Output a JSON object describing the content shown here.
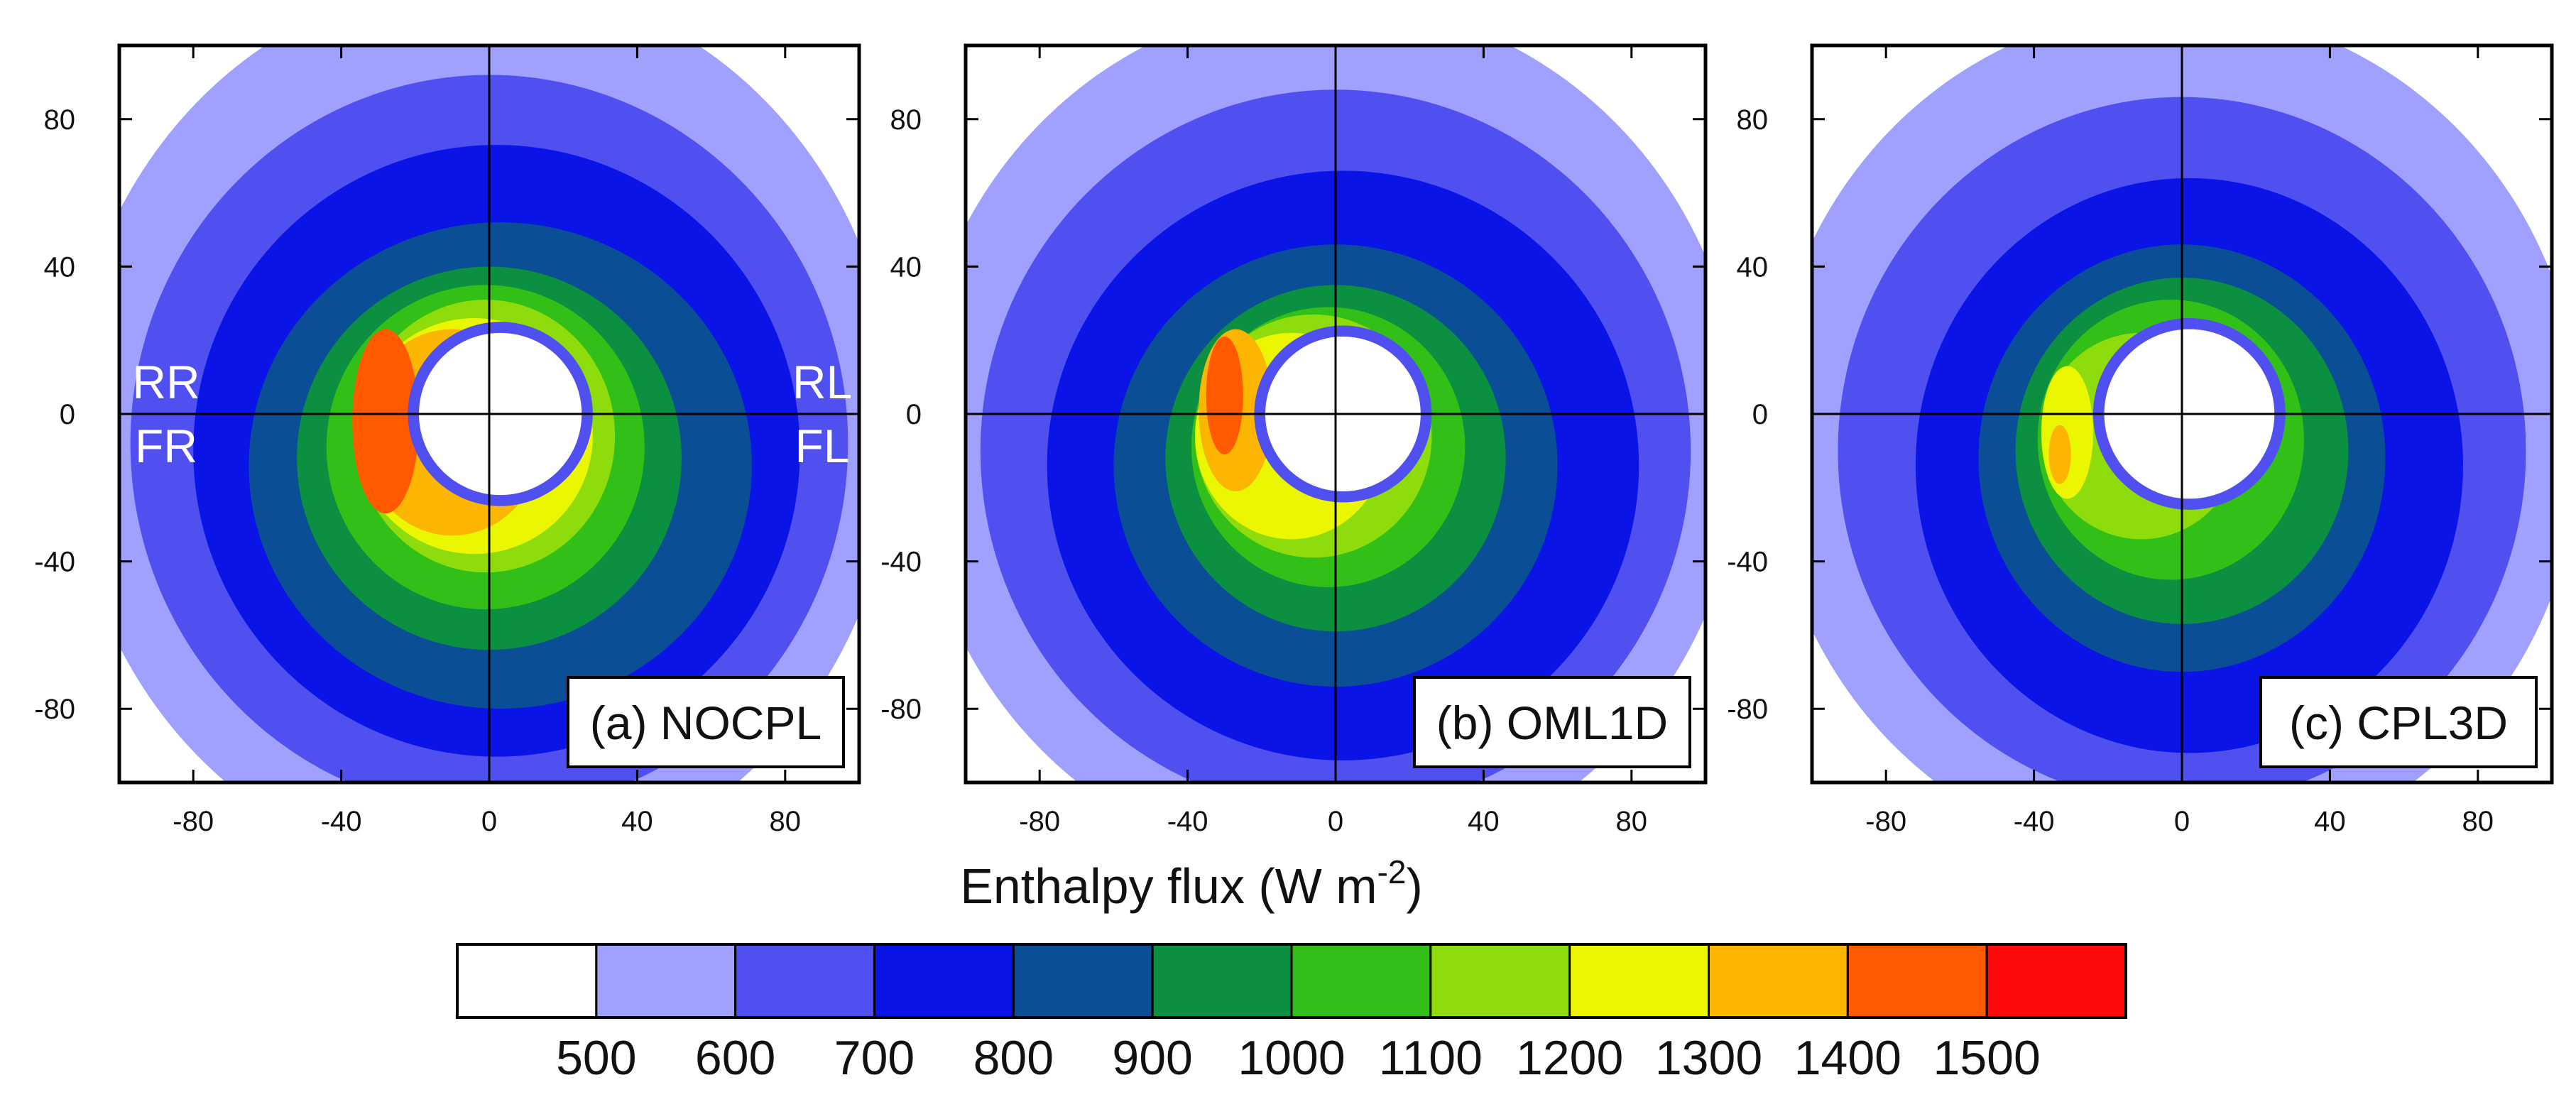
{
  "figure": {
    "xlabel_main": "Enthalpy flux (W m",
    "xlabel_sup": "-2",
    "xlabel_close": ")"
  },
  "chart_data": {
    "type": "heatmap",
    "title": "Enthalpy flux (W m-2)",
    "axes": {
      "xlim": [
        -100,
        100
      ],
      "ylim": [
        -100,
        100
      ],
      "xticks": [
        -80,
        -40,
        0,
        40,
        80
      ],
      "yticks": [
        80,
        40,
        0,
        -40,
        -80
      ],
      "xtick_labels": [
        "-80",
        "-40",
        "0",
        "40",
        "80"
      ],
      "ytick_labels": [
        "80",
        "40",
        "0",
        "-40",
        "-80"
      ]
    },
    "quadrant_labels": {
      "rear_right": "RR",
      "front_right": "FR",
      "rear_left": "RL",
      "front_left": "FL"
    },
    "colorbar": {
      "levels": [
        500,
        600,
        700,
        800,
        900,
        1000,
        1100,
        1200,
        1300,
        1400,
        1500
      ],
      "level_labels": [
        "500",
        "600",
        "700",
        "800",
        "900",
        "1000",
        "1100",
        "1200",
        "1300",
        "1400",
        "1500"
      ],
      "colors": [
        "#ffffff",
        "#a0a0ff",
        "#5050f0",
        "#0a14e6",
        "#0a4e96",
        "#0a9040",
        "#32c018",
        "#8edc0c",
        "#ebf700",
        "#fcb500",
        "#ff5a00",
        "#ff0a0a"
      ]
    },
    "panels": [
      {
        "label": "(a) NOCPL",
        "eye_radius": 22,
        "center_offset_x": 3,
        "max_level": 1400,
        "max_location": "rear-right / front-right, left of center",
        "contours": [
          {
            "level": 500,
            "rx": 112,
            "ry": 122,
            "cx": -2,
            "cy": -4
          },
          {
            "level": 600,
            "rx": 97,
            "ry": 100,
            "cx": 0,
            "cy": -8
          },
          {
            "level": 700,
            "rx": 82,
            "ry": 83,
            "cx": 2,
            "cy": -10
          },
          {
            "level": 800,
            "rx": 68,
            "ry": 66,
            "cx": 3,
            "cy": -14
          },
          {
            "level": 900,
            "rx": 52,
            "ry": 52,
            "cx": 0,
            "cy": -12
          },
          {
            "level": 1000,
            "rx": 43,
            "ry": 44,
            "cx": -1,
            "cy": -9
          },
          {
            "level": 1100,
            "rx": 35,
            "ry": 37,
            "cx": -1,
            "cy": -6
          },
          {
            "level": 1200,
            "rx": 32,
            "ry": 32,
            "cx": -4,
            "cy": -6
          },
          {
            "level": 1300,
            "rx": 25,
            "ry": 28,
            "cx": -10,
            "cy": -5
          },
          {
            "level": 1400,
            "rx": 9,
            "ry": 25,
            "cx": -28,
            "cy": -2
          }
        ]
      },
      {
        "label": "(b) OML1D",
        "eye_radius": 21,
        "center_offset_x": 2,
        "max_level": 1400,
        "max_location": "rear-right, left of center",
        "contours": [
          {
            "level": 500,
            "rx": 112,
            "ry": 118,
            "cx": -2,
            "cy": -6
          },
          {
            "level": 600,
            "rx": 96,
            "ry": 98,
            "cx": 0,
            "cy": -10
          },
          {
            "level": 700,
            "rx": 80,
            "ry": 80,
            "cx": 2,
            "cy": -14
          },
          {
            "level": 800,
            "rx": 60,
            "ry": 60,
            "cx": 0,
            "cy": -14
          },
          {
            "level": 900,
            "rx": 46,
            "ry": 47,
            "cx": 0,
            "cy": -12
          },
          {
            "level": 1000,
            "rx": 37,
            "ry": 38,
            "cx": -2,
            "cy": -9
          },
          {
            "level": 1100,
            "rx": 32,
            "ry": 33,
            "cx": -6,
            "cy": -6
          },
          {
            "level": 1200,
            "rx": 26,
            "ry": 28,
            "cx": -12,
            "cy": -6
          },
          {
            "level": 1300,
            "rx": 10,
            "ry": 22,
            "cx": -27,
            "cy": 1
          },
          {
            "level": 1400,
            "rx": 5,
            "ry": 16,
            "cx": -30,
            "cy": 5
          }
        ]
      },
      {
        "label": "(c) CPL3D",
        "eye_radius": 23,
        "center_offset_x": 2,
        "max_level": 1300,
        "max_location": "front-right, left of center",
        "contours": [
          {
            "level": 500,
            "rx": 110,
            "ry": 116,
            "cx": -2,
            "cy": -6
          },
          {
            "level": 600,
            "rx": 93,
            "ry": 96,
            "cx": 0,
            "cy": -10
          },
          {
            "level": 700,
            "rx": 74,
            "ry": 78,
            "cx": 2,
            "cy": -14
          },
          {
            "level": 800,
            "rx": 55,
            "ry": 58,
            "cx": 0,
            "cy": -12
          },
          {
            "level": 900,
            "rx": 45,
            "ry": 47,
            "cx": 0,
            "cy": -10
          },
          {
            "level": 1000,
            "rx": 36,
            "ry": 38,
            "cx": -3,
            "cy": -7
          },
          {
            "level": 1100,
            "rx": 27,
            "ry": 28,
            "cx": -11,
            "cy": -6
          },
          {
            "level": 1200,
            "rx": 7,
            "ry": 18,
            "cx": -31,
            "cy": -5
          },
          {
            "level": 1300,
            "rx": 3,
            "ry": 8,
            "cx": -33,
            "cy": -11
          }
        ]
      }
    ]
  }
}
